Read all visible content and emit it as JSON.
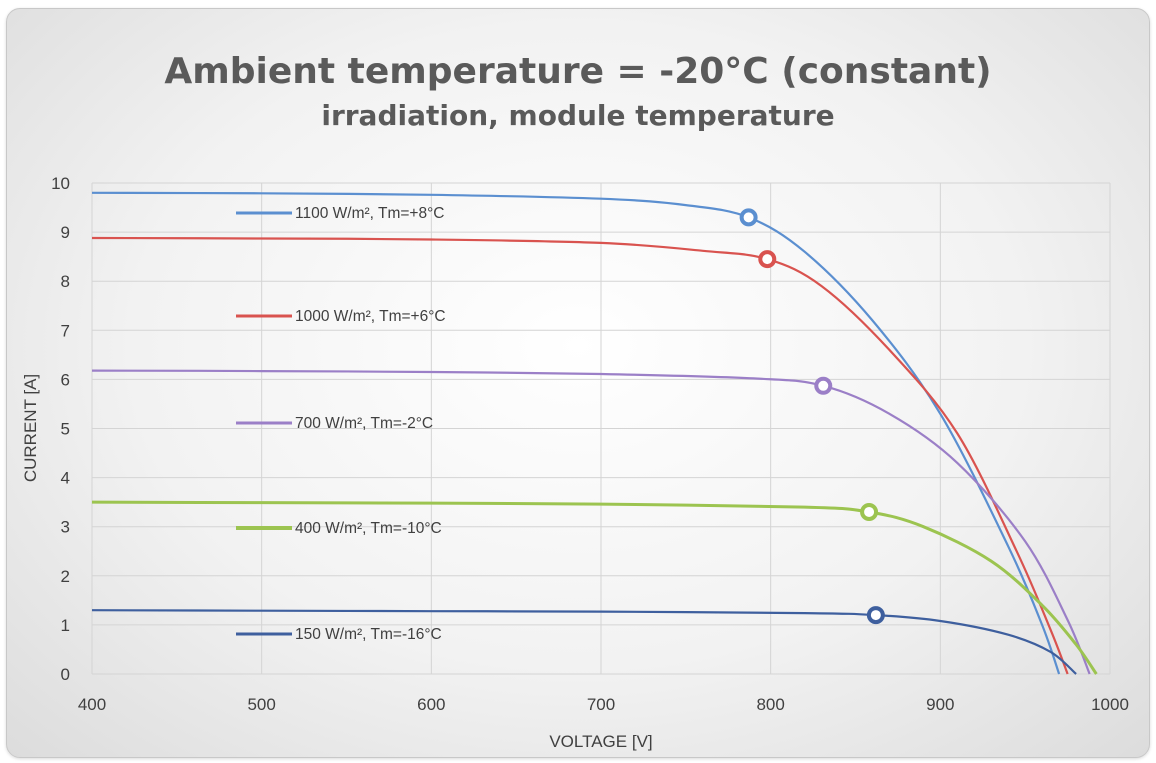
{
  "chart_data": {
    "type": "line",
    "title": "Ambient temperature = -20°C (constant)",
    "subtitle": "irradiation, module temperature",
    "xlabel": "VOLTAGE [V]",
    "ylabel": "CURRENT [A]",
    "xlim": [
      400,
      1000
    ],
    "ylim": [
      0,
      10
    ],
    "x_ticks": [
      "400",
      "500",
      "600",
      "700",
      "800",
      "900",
      "1000"
    ],
    "y_ticks": [
      "0",
      "1",
      "2",
      "3",
      "4",
      "5",
      "6",
      "7",
      "8",
      "9",
      "10"
    ],
    "grid": true,
    "legend": "inline labels inside plot, left",
    "series": [
      {
        "name": "1100 W/m², Tm=+8°C",
        "color": "#5b8fd0",
        "points": [
          [
            400,
            9.8
          ],
          [
            500,
            9.79
          ],
          [
            600,
            9.76
          ],
          [
            700,
            9.68
          ],
          [
            750,
            9.55
          ],
          [
            787,
            9.3
          ],
          [
            820,
            8.6
          ],
          [
            860,
            7.2
          ],
          [
            900,
            5.3
          ],
          [
            940,
            2.6
          ],
          [
            960,
            1.0
          ],
          [
            970,
            0.0
          ]
        ],
        "mpp": [
          787,
          9.3
        ]
      },
      {
        "name": "1000 W/m², Tm=+6°C",
        "color": "#d9534f",
        "points": [
          [
            400,
            8.88
          ],
          [
            500,
            8.87
          ],
          [
            600,
            8.85
          ],
          [
            700,
            8.78
          ],
          [
            760,
            8.62
          ],
          [
            798,
            8.45
          ],
          [
            830,
            7.9
          ],
          [
            870,
            6.6
          ],
          [
            910,
            4.9
          ],
          [
            945,
            2.5
          ],
          [
            965,
            0.9
          ],
          [
            975,
            0.0
          ]
        ],
        "mpp": [
          798,
          8.45
        ]
      },
      {
        "name": "700 W/m², Tm=-2°C",
        "color": "#9b7fc7",
        "points": [
          [
            400,
            6.18
          ],
          [
            500,
            6.17
          ],
          [
            600,
            6.15
          ],
          [
            700,
            6.11
          ],
          [
            790,
            6.02
          ],
          [
            831,
            5.87
          ],
          [
            870,
            5.3
          ],
          [
            910,
            4.3
          ],
          [
            950,
            2.7
          ],
          [
            975,
            1.1
          ],
          [
            988,
            0.0
          ]
        ],
        "mpp": [
          831,
          5.87
        ]
      },
      {
        "name": "400 W/m², Tm=-10°C",
        "color": "#9cc450",
        "points": [
          [
            400,
            3.5
          ],
          [
            500,
            3.49
          ],
          [
            600,
            3.48
          ],
          [
            700,
            3.46
          ],
          [
            820,
            3.4
          ],
          [
            858,
            3.3
          ],
          [
            890,
            3.0
          ],
          [
            930,
            2.3
          ],
          [
            960,
            1.4
          ],
          [
            980,
            0.6
          ],
          [
            992,
            0.0
          ]
        ],
        "mpp": [
          858,
          3.3
        ]
      },
      {
        "name": "150 W/m², Tm=-16°C",
        "color": "#3e5f9e",
        "points": [
          [
            400,
            1.3
          ],
          [
            500,
            1.29
          ],
          [
            600,
            1.28
          ],
          [
            700,
            1.27
          ],
          [
            820,
            1.24
          ],
          [
            862,
            1.2
          ],
          [
            900,
            1.08
          ],
          [
            940,
            0.8
          ],
          [
            965,
            0.45
          ],
          [
            980,
            0.0
          ]
        ],
        "mpp": [
          862,
          1.2
        ]
      }
    ]
  }
}
